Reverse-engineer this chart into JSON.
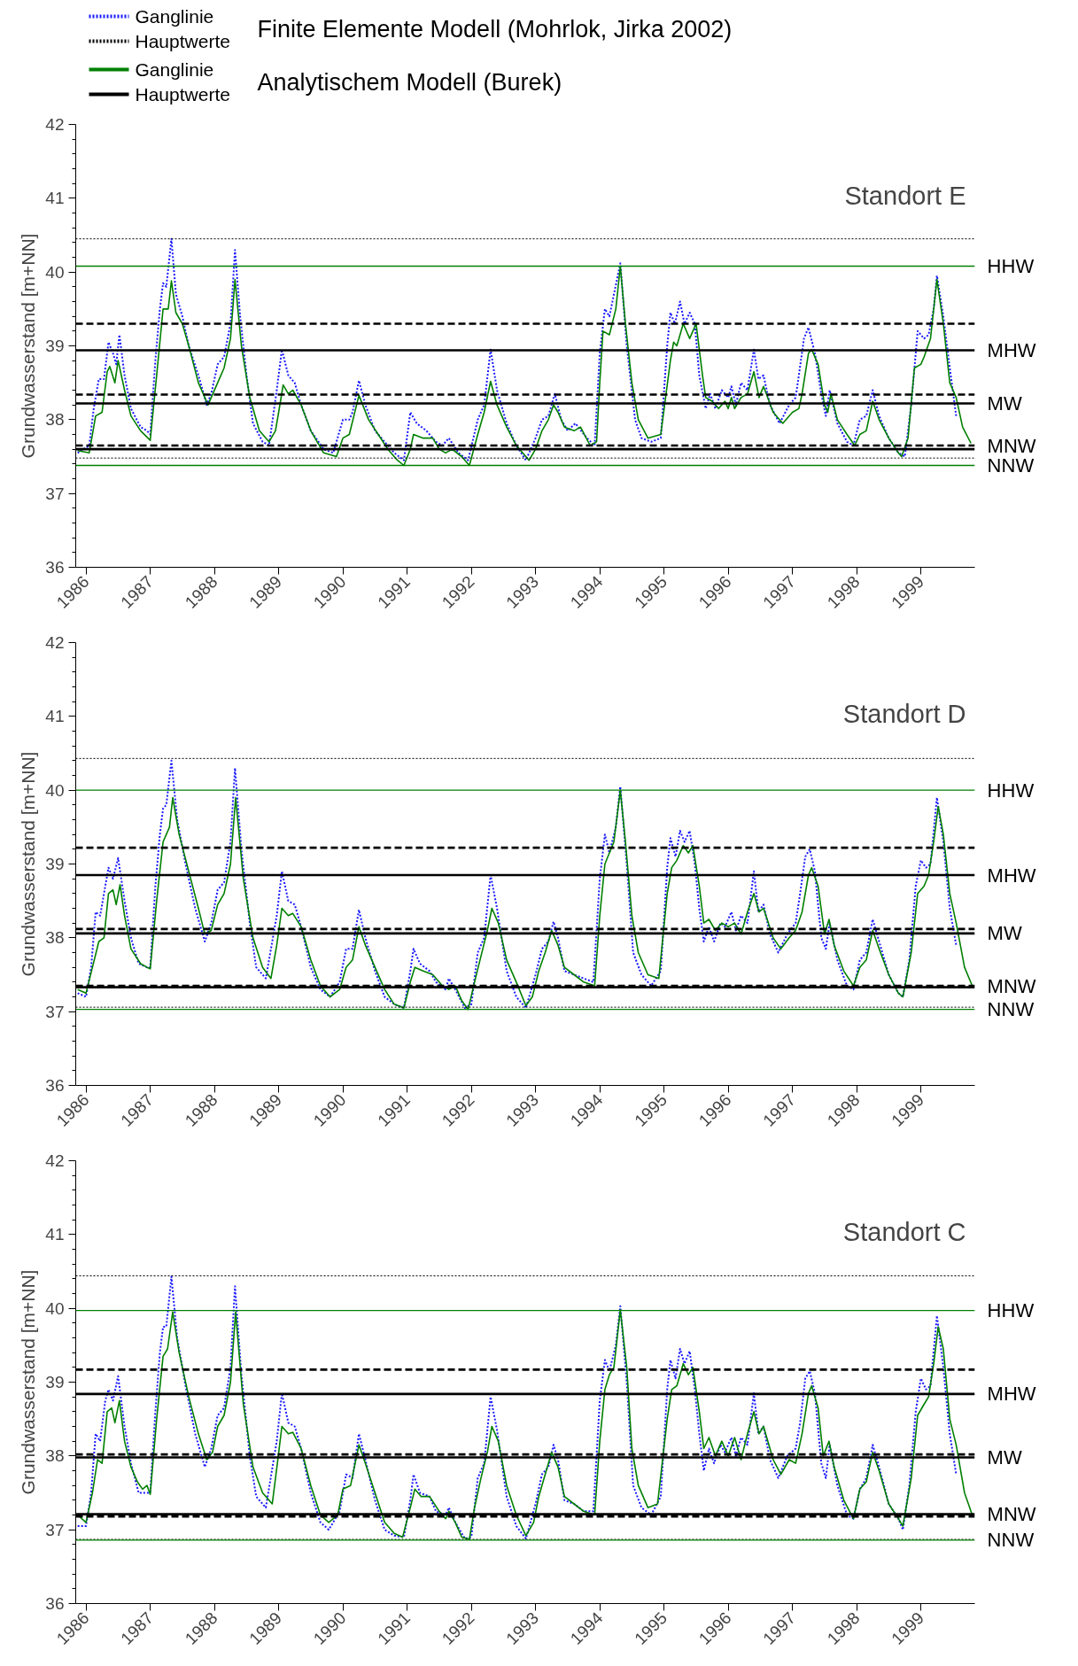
{
  "chart_data": [
    {
      "type": "line",
      "title": "Standort E",
      "ylabel": "Grundwasserstand [m+NN]",
      "xlim": [
        1985.84,
        1999.84
      ],
      "ylim": [
        36,
        42
      ],
      "xticks": [
        1986,
        1987,
        1988,
        1989,
        1990,
        1991,
        1992,
        1993,
        1994,
        1995,
        1996,
        1997,
        1998,
        1999
      ],
      "yticks": [
        36,
        37,
        38,
        39,
        40,
        41,
        42
      ],
      "legend": "top left",
      "annotations": [
        "Hauptwerte",
        "Finite Elemente Modell (Mohrlok, Jirka 2002)",
        "Hauptwerte",
        "Analytischem Modell (Burek)"
      ],
      "series": [
        {
          "name": "Ganglinie",
          "color": "#1a1aff",
          "line_style": "dotted",
          "x": [
            1985.87,
            1986.05,
            1986.12,
            1986.2,
            1986.28,
            1986.35,
            1986.42,
            1986.47,
            1986.52,
            1986.6,
            1986.7,
            1986.85,
            1986.95,
            1987.0,
            1987.08,
            1987.15,
            1987.2,
            1987.25,
            1987.33,
            1987.4,
            1987.5,
            1987.6,
            1987.75,
            1987.88,
            1987.95,
            1988.05,
            1988.15,
            1988.25,
            1988.32,
            1988.4,
            1988.5,
            1988.6,
            1988.75,
            1988.85,
            1988.97,
            1989.05,
            1989.15,
            1989.25,
            1989.35,
            1989.5,
            1989.7,
            1989.85,
            1990.0,
            1990.1,
            1990.15,
            1990.25,
            1990.35,
            1990.5,
            1990.65,
            1990.8,
            1990.95,
            1991.05,
            1991.15,
            1991.3,
            1991.45,
            1991.55,
            1991.65,
            1991.8,
            1991.95,
            1992.1,
            1992.2,
            1992.3,
            1992.4,
            1992.55,
            1992.7,
            1992.85,
            1993.0,
            1993.1,
            1993.2,
            1993.3,
            1993.4,
            1993.5,
            1993.62,
            1993.8,
            1993.92,
            1994.0,
            1994.08,
            1994.15,
            1994.32,
            1994.42,
            1994.55,
            1994.65,
            1994.8,
            1994.95,
            1995.05,
            1995.1,
            1995.17,
            1995.25,
            1995.32,
            1995.4,
            1995.48,
            1995.55,
            1995.65,
            1995.72,
            1995.8,
            1995.9,
            1996.0,
            1996.05,
            1996.12,
            1996.2,
            1996.3,
            1996.4,
            1996.47,
            1996.55,
            1996.65,
            1996.8,
            1996.95,
            1997.05,
            1997.1,
            1997.18,
            1997.25,
            1997.35,
            1997.45,
            1997.52,
            1997.58,
            1997.7,
            1997.85,
            1997.95,
            1998.05,
            1998.15,
            1998.25,
            1998.35,
            1998.5,
            1998.65,
            1998.75,
            1998.85,
            1998.95,
            1999.05,
            1999.12,
            1999.2,
            1999.25,
            1999.35,
            1999.45,
            1999.55
          ],
          "values": [
            37.55,
            37.65,
            38.15,
            38.55,
            38.55,
            39.05,
            38.9,
            38.75,
            39.15,
            38.6,
            38.15,
            37.9,
            37.85,
            37.8,
            38.8,
            39.5,
            39.85,
            39.8,
            40.45,
            39.7,
            39.4,
            39.0,
            38.6,
            38.2,
            38.35,
            38.75,
            38.85,
            39.3,
            40.3,
            39.4,
            38.6,
            37.95,
            37.7,
            37.65,
            38.4,
            38.95,
            38.6,
            38.5,
            38.2,
            37.85,
            37.6,
            37.55,
            38.0,
            38.0,
            38.1,
            38.53,
            38.2,
            37.85,
            37.7,
            37.55,
            37.45,
            38.1,
            37.95,
            37.85,
            37.7,
            37.65,
            37.75,
            37.55,
            37.45,
            38.0,
            38.2,
            38.95,
            38.4,
            37.95,
            37.65,
            37.45,
            37.75,
            38.0,
            38.05,
            38.35,
            38.0,
            37.85,
            37.95,
            37.75,
            37.65,
            38.9,
            39.5,
            39.4,
            40.12,
            39.0,
            38.0,
            37.75,
            37.7,
            37.75,
            39.0,
            39.45,
            39.3,
            39.6,
            39.3,
            39.45,
            39.3,
            38.6,
            38.15,
            38.35,
            38.15,
            38.4,
            38.3,
            38.45,
            38.2,
            38.5,
            38.4,
            38.95,
            38.55,
            38.6,
            38.2,
            37.95,
            38.2,
            38.3,
            38.6,
            39.1,
            39.25,
            38.9,
            38.35,
            38.05,
            38.4,
            37.95,
            37.7,
            37.65,
            38.0,
            38.05,
            38.4,
            38.05,
            37.75,
            37.55,
            37.5,
            38.2,
            39.2,
            39.1,
            39.15,
            39.5,
            39.95,
            39.4,
            38.7,
            38.05
          ]
        },
        {
          "name": "Ganglinie",
          "color": "#008000",
          "line_style": "solid",
          "x": [
            1985.87,
            1986.05,
            1986.15,
            1986.25,
            1986.33,
            1986.37,
            1986.45,
            1986.5,
            1986.6,
            1986.7,
            1986.85,
            1987.0,
            1987.1,
            1987.2,
            1987.28,
            1987.33,
            1987.4,
            1987.5,
            1987.6,
            1987.75,
            1987.9,
            1988.05,
            1988.15,
            1988.25,
            1988.32,
            1988.42,
            1988.55,
            1988.7,
            1988.85,
            1988.95,
            1989.0,
            1989.07,
            1989.15,
            1989.22,
            1989.35,
            1989.5,
            1989.7,
            1989.9,
            1990.0,
            1990.1,
            1990.25,
            1990.4,
            1990.55,
            1990.7,
            1990.85,
            1990.95,
            1991.05,
            1991.1,
            1991.25,
            1991.4,
            1991.5,
            1991.6,
            1991.7,
            1991.85,
            1991.97,
            1992.1,
            1992.2,
            1992.3,
            1992.4,
            1992.55,
            1992.7,
            1992.9,
            1993.0,
            1993.1,
            1993.2,
            1993.28,
            1993.35,
            1993.45,
            1993.6,
            1993.7,
            1993.85,
            1993.95,
            1994.0,
            1994.05,
            1994.15,
            1994.25,
            1994.32,
            1994.4,
            1994.5,
            1994.6,
            1994.75,
            1994.95,
            1995.1,
            1995.15,
            1995.2,
            1995.3,
            1995.4,
            1995.45,
            1995.5,
            1995.6,
            1995.65,
            1995.75,
            1995.85,
            1995.95,
            1996.0,
            1996.05,
            1996.1,
            1996.2,
            1996.3,
            1996.4,
            1996.48,
            1996.55,
            1996.7,
            1996.85,
            1997.0,
            1997.1,
            1997.15,
            1997.25,
            1997.3,
            1997.4,
            1997.5,
            1997.55,
            1997.6,
            1997.7,
            1997.85,
            1997.97,
            1998.05,
            1998.15,
            1998.25,
            1998.35,
            1998.5,
            1998.65,
            1998.7,
            1998.8,
            1998.9,
            1999.0,
            1999.05,
            1999.15,
            1999.25,
            1999.35,
            1999.45,
            1999.55,
            1999.65,
            1999.78
          ],
          "values": [
            37.58,
            37.55,
            38.05,
            38.1,
            38.65,
            38.72,
            38.5,
            38.8,
            38.4,
            38.05,
            37.85,
            37.72,
            38.6,
            39.5,
            39.5,
            39.88,
            39.45,
            39.3,
            39.0,
            38.5,
            38.2,
            38.5,
            38.7,
            39.1,
            39.9,
            39.0,
            38.3,
            37.85,
            37.7,
            37.85,
            38.1,
            38.47,
            38.35,
            38.4,
            38.2,
            37.85,
            37.55,
            37.5,
            37.75,
            37.8,
            38.33,
            38.0,
            37.8,
            37.6,
            37.45,
            37.38,
            37.6,
            37.8,
            37.75,
            37.75,
            37.6,
            37.55,
            37.6,
            37.5,
            37.38,
            37.8,
            38.1,
            38.52,
            38.2,
            37.9,
            37.65,
            37.45,
            37.6,
            37.85,
            38.0,
            38.2,
            38.1,
            37.9,
            37.85,
            37.9,
            37.65,
            37.7,
            38.5,
            39.2,
            39.15,
            39.5,
            40.08,
            39.3,
            38.5,
            38.0,
            37.75,
            37.8,
            38.8,
            39.05,
            39.0,
            39.3,
            39.1,
            39.2,
            39.3,
            38.6,
            38.3,
            38.25,
            38.15,
            38.25,
            38.15,
            38.3,
            38.15,
            38.3,
            38.35,
            38.65,
            38.3,
            38.45,
            38.1,
            37.95,
            38.1,
            38.15,
            38.35,
            38.9,
            38.95,
            38.75,
            38.2,
            38.1,
            38.35,
            38.0,
            37.8,
            37.65,
            37.8,
            37.85,
            38.25,
            38.0,
            37.75,
            37.55,
            37.5,
            37.75,
            38.7,
            38.75,
            38.85,
            39.1,
            39.9,
            39.3,
            38.5,
            38.3,
            37.9,
            37.68
          ]
        }
      ],
      "ref_lines": [
        {
          "axis": "y",
          "value": 40.45,
          "color": "#000000",
          "line_style": "dotted"
        },
        {
          "axis": "y",
          "value": 40.08,
          "color": "#008000",
          "line_style": "solid",
          "label": "HHW"
        },
        {
          "axis": "y",
          "value": 39.3,
          "color": "#000000",
          "line_style": "dashed"
        },
        {
          "axis": "y",
          "value": 38.94,
          "color": "#000000",
          "line_style": "solid",
          "label": "MHW"
        },
        {
          "axis": "y",
          "value": 38.34,
          "color": "#000000",
          "line_style": "dashed"
        },
        {
          "axis": "y",
          "value": 38.22,
          "color": "#000000",
          "line_style": "solid",
          "label": "MW"
        },
        {
          "axis": "y",
          "value": 37.65,
          "color": "#000000",
          "line_style": "dashed",
          "label": "MNW"
        },
        {
          "axis": "y",
          "value": 37.6,
          "color": "#000000",
          "line_style": "solid"
        },
        {
          "axis": "y",
          "value": 37.48,
          "color": "#000000",
          "line_style": "dotted"
        },
        {
          "axis": "y",
          "value": 37.38,
          "color": "#008000",
          "line_style": "solid",
          "label": "NNW"
        }
      ]
    },
    {
      "type": "line",
      "title": "Standort D",
      "ylabel": "Grundwasserstand [m+NN]",
      "xlim": [
        1985.84,
        1999.84
      ],
      "ylim": [
        36,
        42
      ],
      "xticks": [
        1986,
        1987,
        1988,
        1989,
        1990,
        1991,
        1992,
        1993,
        1994,
        1995,
        1996,
        1997,
        1998,
        1999
      ],
      "yticks": [
        36,
        37,
        38,
        39,
        40,
        41,
        42
      ],
      "series": [
        {
          "color": "#1a1aff",
          "line_style": "dotted",
          "x": [
            1985.87,
            1986.0,
            1986.08,
            1986.15,
            1986.22,
            1986.3,
            1986.35,
            1986.42,
            1986.5,
            1986.6,
            1986.7,
            1986.82,
            1986.95,
            1987.0,
            1987.08,
            1987.15,
            1987.2,
            1987.25,
            1987.33,
            1987.42,
            1987.55,
            1987.7,
            1987.85,
            1987.95,
            1988.05,
            1988.15,
            1988.25,
            1988.32,
            1988.42,
            1988.55,
            1988.65,
            1988.8,
            1988.97,
            1989.05,
            1989.15,
            1989.25,
            1989.35,
            1989.5,
            1989.65,
            1989.8,
            1989.95,
            1990.05,
            1990.15,
            1990.25,
            1990.35,
            1990.5,
            1990.65,
            1990.8,
            1990.95,
            1991.05,
            1991.1,
            1991.2,
            1991.35,
            1991.45,
            1991.6,
            1991.65,
            1991.75,
            1991.9,
            1992.0,
            1992.1,
            1992.2,
            1992.3,
            1992.4,
            1992.55,
            1992.7,
            1992.85,
            1993.0,
            1993.1,
            1993.2,
            1993.28,
            1993.35,
            1993.45,
            1993.6,
            1993.75,
            1993.9,
            1994.0,
            1994.08,
            1994.15,
            1994.25,
            1994.32,
            1994.42,
            1994.52,
            1994.65,
            1994.8,
            1994.95,
            1995.05,
            1995.1,
            1995.18,
            1995.25,
            1995.32,
            1995.4,
            1995.48,
            1995.55,
            1995.62,
            1995.7,
            1995.78,
            1995.88,
            1995.95,
            1996.05,
            1996.12,
            1996.2,
            1996.3,
            1996.4,
            1996.47,
            1996.55,
            1996.65,
            1996.78,
            1996.92,
            1997.05,
            1997.12,
            1997.2,
            1997.27,
            1997.35,
            1997.45,
            1997.52,
            1997.58,
            1997.7,
            1997.85,
            1997.95,
            1998.05,
            1998.15,
            1998.25,
            1998.35,
            1998.5,
            1998.65,
            1998.72,
            1998.82,
            1998.92,
            1999.0,
            1999.08,
            1999.15,
            1999.25,
            1999.35,
            1999.45,
            1999.55
          ],
          "values": [
            37.25,
            37.2,
            37.6,
            38.35,
            38.3,
            38.7,
            38.95,
            38.8,
            39.08,
            38.5,
            38.0,
            37.65,
            37.6,
            37.6,
            38.7,
            39.4,
            39.75,
            39.8,
            40.4,
            39.6,
            39.0,
            38.4,
            37.95,
            38.2,
            38.65,
            38.75,
            39.3,
            40.3,
            39.2,
            38.2,
            37.6,
            37.45,
            38.3,
            38.9,
            38.5,
            38.45,
            38.15,
            37.6,
            37.3,
            37.2,
            37.4,
            37.85,
            37.85,
            38.38,
            38.0,
            37.55,
            37.2,
            37.1,
            37.05,
            37.55,
            37.85,
            37.65,
            37.55,
            37.4,
            37.3,
            37.45,
            37.3,
            37.05,
            37.1,
            37.8,
            38.0,
            38.85,
            38.4,
            37.55,
            37.2,
            37.05,
            37.5,
            37.85,
            37.95,
            38.22,
            38.0,
            37.55,
            37.5,
            37.45,
            37.4,
            38.8,
            39.4,
            39.15,
            39.5,
            40.05,
            39.0,
            37.8,
            37.5,
            37.35,
            37.55,
            38.95,
            39.35,
            39.1,
            39.45,
            39.3,
            39.45,
            39.0,
            38.4,
            37.95,
            38.15,
            37.95,
            38.2,
            38.15,
            38.35,
            38.1,
            38.3,
            38.2,
            38.9,
            38.35,
            38.45,
            38.05,
            37.8,
            38.05,
            38.2,
            38.6,
            39.1,
            39.2,
            38.9,
            38.0,
            37.85,
            38.2,
            37.7,
            37.35,
            37.3,
            37.7,
            37.8,
            38.25,
            37.95,
            37.5,
            37.25,
            37.2,
            37.7,
            38.7,
            39.05,
            38.95,
            39.0,
            39.9,
            39.3,
            38.4,
            37.9
          ]
        },
        {
          "color": "#008000",
          "line_style": "solid",
          "x": [
            1985.87,
            1986.0,
            1986.1,
            1986.2,
            1986.28,
            1986.35,
            1986.42,
            1986.47,
            1986.53,
            1986.6,
            1986.7,
            1986.85,
            1986.95,
            1987.0,
            1987.1,
            1987.2,
            1987.3,
            1987.35,
            1987.45,
            1987.6,
            1987.75,
            1987.85,
            1987.95,
            1988.05,
            1988.15,
            1988.25,
            1988.33,
            1988.45,
            1988.6,
            1988.75,
            1988.88,
            1988.97,
            1989.05,
            1989.15,
            1989.22,
            1989.35,
            1989.5,
            1989.65,
            1989.8,
            1989.95,
            1990.05,
            1990.15,
            1990.25,
            1990.35,
            1990.5,
            1990.65,
            1990.8,
            1990.95,
            1991.05,
            1991.12,
            1991.25,
            1991.4,
            1991.55,
            1991.65,
            1991.75,
            1991.85,
            1991.95,
            1992.05,
            1992.15,
            1992.25,
            1992.32,
            1992.42,
            1992.55,
            1992.7,
            1992.85,
            1992.95,
            1993.05,
            1993.15,
            1993.25,
            1993.35,
            1993.45,
            1993.6,
            1993.75,
            1993.92,
            1994.0,
            1994.08,
            1994.15,
            1994.22,
            1994.32,
            1994.4,
            1994.5,
            1994.6,
            1994.75,
            1994.92,
            1995.05,
            1995.12,
            1995.2,
            1995.3,
            1995.38,
            1995.45,
            1995.55,
            1995.62,
            1995.7,
            1995.8,
            1995.9,
            1996.0,
            1996.1,
            1996.2,
            1996.3,
            1996.4,
            1996.48,
            1996.55,
            1996.7,
            1996.82,
            1996.95,
            1997.05,
            1997.15,
            1997.25,
            1997.3,
            1997.4,
            1997.5,
            1997.57,
            1997.65,
            1997.8,
            1997.95,
            1998.05,
            1998.15,
            1998.25,
            1998.35,
            1998.5,
            1998.65,
            1998.72,
            1998.85,
            1998.95,
            1999.05,
            1999.12,
            1999.2,
            1999.27,
            1999.35,
            1999.45,
            1999.55,
            1999.68,
            1999.8
          ],
          "values": [
            37.3,
            37.25,
            37.6,
            37.95,
            38.0,
            38.6,
            38.65,
            38.45,
            38.72,
            38.3,
            37.85,
            37.65,
            37.6,
            37.58,
            38.5,
            39.3,
            39.5,
            39.9,
            39.4,
            38.9,
            38.4,
            38.05,
            38.1,
            38.45,
            38.6,
            39.0,
            39.9,
            38.8,
            38.0,
            37.6,
            37.45,
            37.9,
            38.4,
            38.3,
            38.33,
            38.15,
            37.7,
            37.35,
            37.2,
            37.3,
            37.6,
            37.7,
            38.15,
            37.9,
            37.6,
            37.3,
            37.1,
            37.05,
            37.4,
            37.6,
            37.55,
            37.5,
            37.35,
            37.3,
            37.35,
            37.15,
            37.03,
            37.4,
            37.75,
            38.1,
            38.4,
            38.2,
            37.7,
            37.4,
            37.08,
            37.2,
            37.55,
            37.8,
            38.1,
            37.9,
            37.6,
            37.5,
            37.4,
            37.35,
            38.3,
            39.0,
            39.15,
            39.3,
            40.0,
            39.3,
            38.3,
            37.8,
            37.5,
            37.45,
            38.6,
            38.95,
            39.05,
            39.25,
            39.15,
            39.25,
            38.7,
            38.2,
            38.25,
            38.1,
            38.2,
            38.15,
            38.2,
            38.05,
            38.35,
            38.6,
            38.35,
            38.4,
            38.0,
            37.85,
            38.0,
            38.1,
            38.35,
            38.85,
            38.95,
            38.7,
            38.05,
            38.25,
            37.9,
            37.55,
            37.35,
            37.6,
            37.7,
            38.1,
            37.85,
            37.5,
            37.25,
            37.2,
            37.8,
            38.6,
            38.7,
            38.85,
            39.3,
            39.78,
            39.4,
            38.6,
            38.2,
            37.6,
            37.35
          ]
        }
      ],
      "ref_lines": [
        {
          "axis": "y",
          "value": 40.43,
          "color": "#000000",
          "line_style": "dotted"
        },
        {
          "axis": "y",
          "value": 40.0,
          "color": "#008000",
          "line_style": "solid",
          "label": "HHW"
        },
        {
          "axis": "y",
          "value": 39.22,
          "color": "#000000",
          "line_style": "dashed"
        },
        {
          "axis": "y",
          "value": 38.85,
          "color": "#000000",
          "line_style": "solid",
          "label": "MHW"
        },
        {
          "axis": "y",
          "value": 38.12,
          "color": "#000000",
          "line_style": "dashed"
        },
        {
          "axis": "y",
          "value": 38.06,
          "color": "#000000",
          "line_style": "solid",
          "label": "MW"
        },
        {
          "axis": "y",
          "value": 37.35,
          "color": "#000000",
          "line_style": "dashed",
          "label": "MNW"
        },
        {
          "axis": "y",
          "value": 37.33,
          "color": "#000000",
          "line_style": "solid"
        },
        {
          "axis": "y",
          "value": 37.06,
          "color": "#000000",
          "line_style": "dotted"
        },
        {
          "axis": "y",
          "value": 37.03,
          "color": "#008000",
          "line_style": "solid",
          "label": "NNW"
        }
      ]
    },
    {
      "type": "line",
      "title": "Standort C",
      "ylabel": "Grundwasserstand [m+NN]",
      "xlim": [
        1985.84,
        1999.84
      ],
      "ylim": [
        36,
        42
      ],
      "xticks": [
        1986,
        1987,
        1988,
        1989,
        1990,
        1991,
        1992,
        1993,
        1994,
        1995,
        1996,
        1997,
        1998,
        1999
      ],
      "yticks": [
        36,
        37,
        38,
        39,
        40,
        41,
        42
      ],
      "series": [
        {
          "color": "#1a1aff",
          "line_style": "dotted",
          "x": [
            1985.87,
            1986.0,
            1986.08,
            1986.15,
            1986.22,
            1986.3,
            1986.35,
            1986.42,
            1986.5,
            1986.6,
            1986.7,
            1986.82,
            1986.95,
            1987.0,
            1987.08,
            1987.15,
            1987.2,
            1987.25,
            1987.33,
            1987.42,
            1987.55,
            1987.7,
            1987.85,
            1987.95,
            1988.05,
            1988.15,
            1988.25,
            1988.32,
            1988.42,
            1988.55,
            1988.65,
            1988.8,
            1988.97,
            1989.05,
            1989.15,
            1989.25,
            1989.35,
            1989.5,
            1989.65,
            1989.78,
            1989.95,
            1990.05,
            1990.15,
            1990.25,
            1990.35,
            1990.5,
            1990.65,
            1990.8,
            1990.95,
            1991.05,
            1991.1,
            1991.2,
            1991.35,
            1991.45,
            1991.6,
            1991.65,
            1991.75,
            1991.9,
            1992.0,
            1992.1,
            1992.2,
            1992.3,
            1992.4,
            1992.55,
            1992.7,
            1992.85,
            1993.0,
            1993.1,
            1993.2,
            1993.28,
            1993.35,
            1993.45,
            1993.6,
            1993.75,
            1993.9,
            1994.0,
            1994.08,
            1994.15,
            1994.25,
            1994.32,
            1994.42,
            1994.52,
            1994.65,
            1994.8,
            1994.95,
            1995.05,
            1995.1,
            1995.18,
            1995.25,
            1995.32,
            1995.4,
            1995.48,
            1995.55,
            1995.62,
            1995.7,
            1995.78,
            1995.88,
            1995.95,
            1996.05,
            1996.12,
            1996.2,
            1996.3,
            1996.4,
            1996.47,
            1996.55,
            1996.65,
            1996.78,
            1996.92,
            1997.05,
            1997.12,
            1997.2,
            1997.27,
            1997.35,
            1997.45,
            1997.52,
            1997.58,
            1997.7,
            1997.85,
            1997.95,
            1998.05,
            1998.15,
            1998.25,
            1998.35,
            1998.5,
            1998.65,
            1998.72,
            1998.82,
            1998.92,
            1999.0,
            1999.08,
            1999.15,
            1999.25,
            1999.35,
            1999.45,
            1999.55
          ],
          "values": [
            37.05,
            37.05,
            37.5,
            38.3,
            38.2,
            38.75,
            38.9,
            38.75,
            39.08,
            38.4,
            37.9,
            37.5,
            37.5,
            37.5,
            38.6,
            39.4,
            39.75,
            39.75,
            40.43,
            39.6,
            38.95,
            38.3,
            37.85,
            38.1,
            38.55,
            38.65,
            39.2,
            40.3,
            39.1,
            38.0,
            37.45,
            37.3,
            38.2,
            38.85,
            38.45,
            38.4,
            38.1,
            37.5,
            37.1,
            37.0,
            37.25,
            37.75,
            37.7,
            38.3,
            37.95,
            37.4,
            37.0,
            36.92,
            36.9,
            37.4,
            37.75,
            37.5,
            37.45,
            37.25,
            37.2,
            37.3,
            37.1,
            36.88,
            36.9,
            37.7,
            37.9,
            38.8,
            38.35,
            37.45,
            37.05,
            36.88,
            37.35,
            37.75,
            37.85,
            38.15,
            37.95,
            37.4,
            37.35,
            37.25,
            37.25,
            38.75,
            39.3,
            39.15,
            39.5,
            40.03,
            39.0,
            37.6,
            37.3,
            37.2,
            37.45,
            38.9,
            39.3,
            39.05,
            39.45,
            39.25,
            39.42,
            38.9,
            38.3,
            37.8,
            38.1,
            37.9,
            38.15,
            38.05,
            38.25,
            38.0,
            38.25,
            38.15,
            38.85,
            38.3,
            38.4,
            37.95,
            37.7,
            38.0,
            38.1,
            38.45,
            39.05,
            39.15,
            38.85,
            37.9,
            37.7,
            38.15,
            37.6,
            37.2,
            37.15,
            37.55,
            37.7,
            38.15,
            37.85,
            37.35,
            37.15,
            37.0,
            37.6,
            38.6,
            39.05,
            38.9,
            38.95,
            39.9,
            39.2,
            38.3,
            37.75
          ]
        },
        {
          "color": "#008000",
          "line_style": "solid",
          "x": [
            1985.87,
            1986.0,
            1986.1,
            1986.18,
            1986.25,
            1986.33,
            1986.4,
            1986.45,
            1986.52,
            1986.6,
            1986.7,
            1986.8,
            1986.88,
            1986.95,
            1987.0,
            1987.1,
            1987.2,
            1987.27,
            1987.35,
            1987.45,
            1987.6,
            1987.75,
            1987.88,
            1987.97,
            1988.05,
            1988.15,
            1988.25,
            1988.33,
            1988.45,
            1988.6,
            1988.75,
            1988.9,
            1988.98,
            1989.05,
            1989.15,
            1989.22,
            1989.35,
            1989.5,
            1989.65,
            1989.78,
            1989.92,
            1990.0,
            1990.12,
            1990.25,
            1990.35,
            1990.5,
            1990.65,
            1990.8,
            1990.93,
            1991.05,
            1991.12,
            1991.22,
            1991.35,
            1991.5,
            1991.6,
            1991.65,
            1991.75,
            1991.85,
            1991.97,
            1992.05,
            1992.15,
            1992.25,
            1992.32,
            1992.42,
            1992.55,
            1992.7,
            1992.85,
            1992.97,
            1993.05,
            1993.15,
            1993.25,
            1993.35,
            1993.45,
            1993.6,
            1993.75,
            1993.92,
            1994.0,
            1994.08,
            1994.15,
            1994.22,
            1994.32,
            1994.42,
            1994.5,
            1994.6,
            1994.75,
            1994.9,
            1995.05,
            1995.12,
            1995.2,
            1995.3,
            1995.38,
            1995.45,
            1995.55,
            1995.62,
            1995.7,
            1995.8,
            1995.9,
            1996.0,
            1996.1,
            1996.2,
            1996.3,
            1996.4,
            1996.48,
            1996.55,
            1996.7,
            1996.82,
            1996.95,
            1997.05,
            1997.15,
            1997.25,
            1997.3,
            1997.4,
            1997.48,
            1997.57,
            1997.65,
            1997.8,
            1997.95,
            1998.05,
            1998.15,
            1998.25,
            1998.35,
            1998.5,
            1998.65,
            1998.72,
            1998.85,
            1998.95,
            1999.05,
            1999.12,
            1999.2,
            1999.27,
            1999.35,
            1999.45,
            1999.55,
            1999.68,
            1999.8
          ],
          "values": [
            37.2,
            37.1,
            37.5,
            37.95,
            37.9,
            38.6,
            38.65,
            38.45,
            38.75,
            38.2,
            37.85,
            37.65,
            37.55,
            37.6,
            37.48,
            38.5,
            39.35,
            39.45,
            39.95,
            39.4,
            38.8,
            38.3,
            37.95,
            38.05,
            38.4,
            38.55,
            39.0,
            39.95,
            38.7,
            37.85,
            37.5,
            37.35,
            37.9,
            38.4,
            38.3,
            38.32,
            38.1,
            37.6,
            37.2,
            37.1,
            37.2,
            37.55,
            37.6,
            38.15,
            37.9,
            37.5,
            37.1,
            36.95,
            36.9,
            37.3,
            37.55,
            37.45,
            37.45,
            37.25,
            37.15,
            37.25,
            37.1,
            36.9,
            36.87,
            37.3,
            37.7,
            38.05,
            38.4,
            38.2,
            37.6,
            37.2,
            36.92,
            37.1,
            37.45,
            37.75,
            38.05,
            37.85,
            37.45,
            37.35,
            37.25,
            37.2,
            38.2,
            38.9,
            39.1,
            39.2,
            39.98,
            39.2,
            38.1,
            37.6,
            37.3,
            37.35,
            38.5,
            38.9,
            38.95,
            39.25,
            39.1,
            39.2,
            38.6,
            38.1,
            38.25,
            38.0,
            38.2,
            38.0,
            38.25,
            37.95,
            38.3,
            38.6,
            38.3,
            38.4,
            37.95,
            37.75,
            37.95,
            37.9,
            38.3,
            38.85,
            38.95,
            38.65,
            38.0,
            38.2,
            37.85,
            37.4,
            37.15,
            37.55,
            37.65,
            38.05,
            37.8,
            37.35,
            37.15,
            37.05,
            37.7,
            38.55,
            38.7,
            38.8,
            39.25,
            39.75,
            39.45,
            38.5,
            38.15,
            37.5,
            37.2
          ]
        }
      ],
      "ref_lines": [
        {
          "axis": "y",
          "value": 40.44,
          "color": "#000000",
          "line_style": "dotted"
        },
        {
          "axis": "y",
          "value": 39.97,
          "color": "#008000",
          "line_style": "solid",
          "label": "HHW"
        },
        {
          "axis": "y",
          "value": 39.17,
          "color": "#000000",
          "line_style": "dashed"
        },
        {
          "axis": "y",
          "value": 38.84,
          "color": "#000000",
          "line_style": "solid",
          "label": "MHW"
        },
        {
          "axis": "y",
          "value": 38.02,
          "color": "#000000",
          "line_style": "dashed"
        },
        {
          "axis": "y",
          "value": 37.98,
          "color": "#000000",
          "line_style": "solid",
          "label": "MW"
        },
        {
          "axis": "y",
          "value": 37.18,
          "color": "#000000",
          "line_style": "dashed"
        },
        {
          "axis": "y",
          "value": 37.21,
          "color": "#000000",
          "line_style": "solid",
          "label": "MNW"
        },
        {
          "axis": "y",
          "value": 36.87,
          "color": "#000000",
          "line_style": "dotted"
        },
        {
          "axis": "y",
          "value": 36.86,
          "color": "#008000",
          "line_style": "solid",
          "label": "NNW"
        }
      ]
    }
  ]
}
